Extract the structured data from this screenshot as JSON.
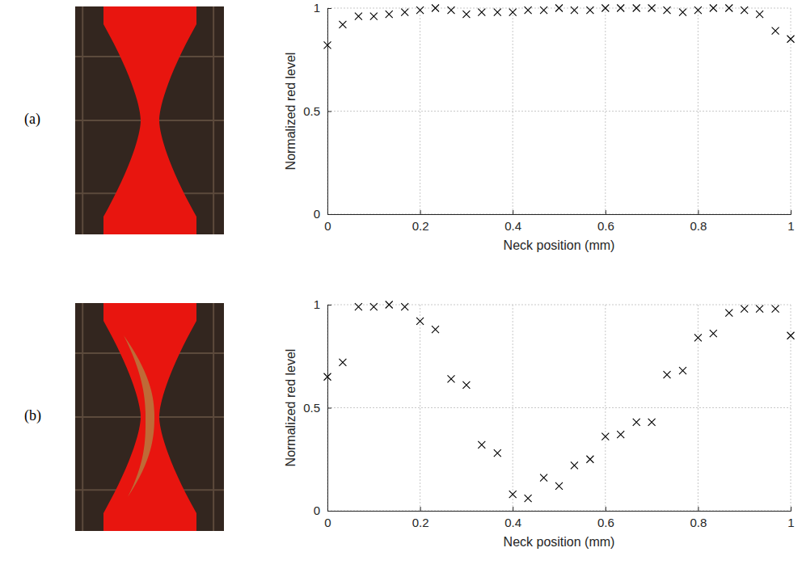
{
  "chart_data": [
    {
      "type": "scatter",
      "title": "(a)",
      "xlabel": "Neck position (mm)",
      "ylabel": "Normalized red level",
      "x": [
        0,
        0.033,
        0.067,
        0.1,
        0.133,
        0.167,
        0.2,
        0.233,
        0.267,
        0.3,
        0.333,
        0.367,
        0.4,
        0.433,
        0.467,
        0.5,
        0.533,
        0.567,
        0.6,
        0.633,
        0.667,
        0.7,
        0.733,
        0.767,
        0.8,
        0.833,
        0.867,
        0.9,
        0.933,
        0.967,
        1
      ],
      "values": [
        0.82,
        0.92,
        0.96,
        0.96,
        0.97,
        0.98,
        0.99,
        1.0,
        0.99,
        0.97,
        0.98,
        0.98,
        0.98,
        0.99,
        0.99,
        1.0,
        0.99,
        0.99,
        1.0,
        1.0,
        1.0,
        1.0,
        0.99,
        0.98,
        0.99,
        1.0,
        1.0,
        0.99,
        0.97,
        0.89,
        0.85
      ],
      "marker": "x",
      "color": "#000000",
      "xlim": [
        0,
        1
      ],
      "xticks": [
        0,
        0.2,
        0.4,
        0.6,
        0.8,
        1
      ],
      "ylim": [
        0,
        1
      ],
      "yticks": [
        0,
        0.5,
        1
      ],
      "grid": true
    },
    {
      "type": "scatter",
      "title": "(b)",
      "xlabel": "Neck position (mm)",
      "ylabel": "Normalized red level",
      "x": [
        0,
        0.033,
        0.067,
        0.1,
        0.133,
        0.167,
        0.2,
        0.233,
        0.267,
        0.3,
        0.333,
        0.367,
        0.4,
        0.433,
        0.467,
        0.5,
        0.533,
        0.567,
        0.6,
        0.633,
        0.667,
        0.7,
        0.733,
        0.767,
        0.8,
        0.833,
        0.867,
        0.9,
        0.933,
        0.967,
        1
      ],
      "values": [
        0.65,
        0.72,
        0.99,
        0.99,
        1.0,
        0.99,
        0.92,
        0.88,
        0.64,
        0.61,
        0.32,
        0.28,
        0.08,
        0.06,
        0.16,
        0.12,
        0.22,
        0.25,
        0.36,
        0.37,
        0.43,
        0.43,
        0.66,
        0.68,
        0.84,
        0.86,
        0.96,
        0.98,
        0.98,
        0.98,
        0.85
      ],
      "marker": "x",
      "color": "#000000",
      "xlim": [
        0,
        1
      ],
      "xticks": [
        0,
        0.2,
        0.4,
        0.6,
        0.8,
        1
      ],
      "ylim": [
        0,
        1
      ],
      "yticks": [
        0,
        0.5,
        1
      ],
      "grid": true
    }
  ]
}
